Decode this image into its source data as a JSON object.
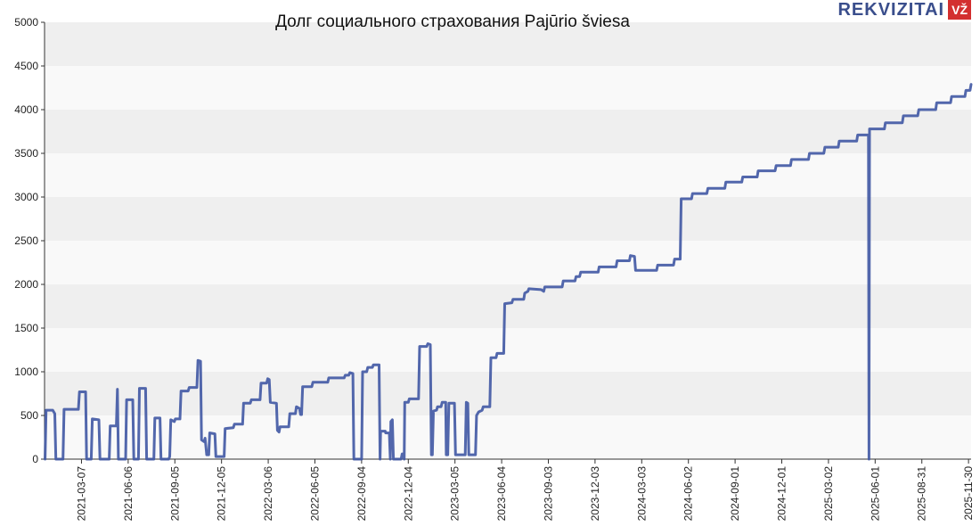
{
  "chart_data": {
    "type": "line",
    "title": "Долг социального страхования Pajūrio šviesa",
    "xlabel": "",
    "ylabel": "",
    "ylim": [
      0,
      5000
    ],
    "y_ticks": [
      0,
      500,
      1000,
      1500,
      2000,
      2500,
      3000,
      3500,
      4000,
      4500,
      5000
    ],
    "x_range": [
      "2020-12-25",
      "2025-12-05"
    ],
    "x_ticks": [
      "2021-03-07",
      "2021-06-06",
      "2021-09-05",
      "2021-12-05",
      "2022-03-06",
      "2022-06-05",
      "2022-09-04",
      "2022-12-04",
      "2023-03-05",
      "2023-06-04",
      "2023-09-03",
      "2023-12-03",
      "2024-03-03",
      "2024-06-02",
      "2024-09-01",
      "2024-12-01",
      "2025-03-02",
      "2025-06-01",
      "2025-08-31",
      "2025-11-30"
    ],
    "grid": "horizontal bands",
    "legend": "none",
    "color": "#3f57a3",
    "series": [
      {
        "points": [
          [
            "2020-12-26",
            0
          ],
          [
            "2020-12-28",
            560
          ],
          [
            "2021-01-10",
            560
          ],
          [
            "2021-01-14",
            520
          ],
          [
            "2021-01-16",
            0
          ],
          [
            "2021-01-30",
            0
          ],
          [
            "2021-02-01",
            570
          ],
          [
            "2021-03-01",
            570
          ],
          [
            "2021-03-03",
            770
          ],
          [
            "2021-03-15",
            770
          ],
          [
            "2021-03-17",
            0
          ],
          [
            "2021-03-26",
            0
          ],
          [
            "2021-03-28",
            460
          ],
          [
            "2021-04-10",
            450
          ],
          [
            "2021-04-12",
            0
          ],
          [
            "2021-04-30",
            0
          ],
          [
            "2021-05-02",
            380
          ],
          [
            "2021-05-14",
            380
          ],
          [
            "2021-05-16",
            800
          ],
          [
            "2021-05-18",
            0
          ],
          [
            "2021-06-01",
            0
          ],
          [
            "2021-06-03",
            680
          ],
          [
            "2021-06-15",
            680
          ],
          [
            "2021-06-17",
            0
          ],
          [
            "2021-06-26",
            0
          ],
          [
            "2021-06-28",
            810
          ],
          [
            "2021-07-10",
            810
          ],
          [
            "2021-07-12",
            0
          ],
          [
            "2021-07-26",
            0
          ],
          [
            "2021-07-28",
            470
          ],
          [
            "2021-08-07",
            470
          ],
          [
            "2021-08-09",
            0
          ],
          [
            "2021-08-24",
            0
          ],
          [
            "2021-08-26",
            30
          ],
          [
            "2021-08-28",
            450
          ],
          [
            "2021-09-04",
            430
          ],
          [
            "2021-09-06",
            460
          ],
          [
            "2021-09-15",
            460
          ],
          [
            "2021-09-17",
            780
          ],
          [
            "2021-10-01",
            780
          ],
          [
            "2021-10-03",
            820
          ],
          [
            "2021-10-18",
            820
          ],
          [
            "2021-10-20",
            1130
          ],
          [
            "2021-10-25",
            1120
          ],
          [
            "2021-10-27",
            220
          ],
          [
            "2021-11-01",
            200
          ],
          [
            "2021-11-03",
            240
          ],
          [
            "2021-11-06",
            50
          ],
          [
            "2021-11-10",
            50
          ],
          [
            "2021-11-12",
            300
          ],
          [
            "2021-11-22",
            290
          ],
          [
            "2021-11-24",
            30
          ],
          [
            "2021-12-10",
            30
          ],
          [
            "2021-12-12",
            350
          ],
          [
            "2021-12-28",
            360
          ],
          [
            "2021-12-30",
            400
          ],
          [
            "2022-01-15",
            400
          ],
          [
            "2022-01-17",
            640
          ],
          [
            "2022-01-30",
            640
          ],
          [
            "2022-02-01",
            680
          ],
          [
            "2022-02-18",
            680
          ],
          [
            "2022-02-20",
            870
          ],
          [
            "2022-03-03",
            870
          ],
          [
            "2022-03-05",
            920
          ],
          [
            "2022-03-08",
            910
          ],
          [
            "2022-03-10",
            650
          ],
          [
            "2022-03-22",
            640
          ],
          [
            "2022-03-24",
            330
          ],
          [
            "2022-03-27",
            310
          ],
          [
            "2022-03-29",
            370
          ],
          [
            "2022-04-15",
            370
          ],
          [
            "2022-04-17",
            520
          ],
          [
            "2022-04-28",
            520
          ],
          [
            "2022-04-30",
            600
          ],
          [
            "2022-05-06",
            580
          ],
          [
            "2022-05-08",
            510
          ],
          [
            "2022-05-10",
            510
          ],
          [
            "2022-05-12",
            830
          ],
          [
            "2022-05-30",
            830
          ],
          [
            "2022-06-01",
            880
          ],
          [
            "2022-06-30",
            880
          ],
          [
            "2022-07-02",
            930
          ],
          [
            "2022-08-01",
            930
          ],
          [
            "2022-08-03",
            960
          ],
          [
            "2022-08-10",
            960
          ],
          [
            "2022-08-12",
            990
          ],
          [
            "2022-08-18",
            980
          ],
          [
            "2022-08-20",
            0
          ],
          [
            "2022-09-04",
            0
          ],
          [
            "2022-09-06",
            1000
          ],
          [
            "2022-09-14",
            1000
          ],
          [
            "2022-09-16",
            1050
          ],
          [
            "2022-09-25",
            1050
          ],
          [
            "2022-09-27",
            1080
          ],
          [
            "2022-10-08",
            1080
          ],
          [
            "2022-10-10",
            0
          ],
          [
            "2022-10-11",
            320
          ],
          [
            "2022-10-20",
            320
          ],
          [
            "2022-10-21",
            300
          ],
          [
            "2022-10-28",
            300
          ],
          [
            "2022-10-30",
            0
          ],
          [
            "2022-10-31",
            430
          ],
          [
            "2022-11-03",
            450
          ],
          [
            "2022-11-05",
            0
          ],
          [
            "2022-11-20",
            0
          ],
          [
            "2022-11-22",
            60
          ],
          [
            "2022-11-25",
            60
          ],
          [
            "2022-11-26",
            0
          ],
          [
            "2022-11-27",
            650
          ],
          [
            "2022-12-04",
            650
          ],
          [
            "2022-12-06",
            690
          ],
          [
            "2022-12-24",
            690
          ],
          [
            "2022-12-26",
            1290
          ],
          [
            "2023-01-09",
            1290
          ],
          [
            "2023-01-11",
            1320
          ],
          [
            "2023-01-16",
            1310
          ],
          [
            "2023-01-18",
            50
          ],
          [
            "2023-01-20",
            50
          ],
          [
            "2023-01-22",
            550
          ],
          [
            "2023-01-28",
            560
          ],
          [
            "2023-01-30",
            600
          ],
          [
            "2023-02-06",
            600
          ],
          [
            "2023-02-08",
            650
          ],
          [
            "2023-02-15",
            650
          ],
          [
            "2023-02-16",
            50
          ],
          [
            "2023-02-19",
            50
          ],
          [
            "2023-02-21",
            640
          ],
          [
            "2023-03-04",
            640
          ],
          [
            "2023-03-06",
            50
          ],
          [
            "2023-03-25",
            50
          ],
          [
            "2023-03-27",
            650
          ],
          [
            "2023-03-30",
            640
          ],
          [
            "2023-04-01",
            50
          ],
          [
            "2023-04-14",
            50
          ],
          [
            "2023-04-16",
            500
          ],
          [
            "2023-04-20",
            540
          ],
          [
            "2023-04-27",
            560
          ],
          [
            "2023-04-29",
            600
          ],
          [
            "2023-05-12",
            600
          ],
          [
            "2023-05-14",
            1160
          ],
          [
            "2023-05-24",
            1160
          ],
          [
            "2023-05-26",
            1210
          ],
          [
            "2023-06-08",
            1210
          ],
          [
            "2023-06-10",
            1780
          ],
          [
            "2023-06-24",
            1790
          ],
          [
            "2023-06-26",
            1830
          ],
          [
            "2023-07-17",
            1830
          ],
          [
            "2023-07-19",
            1900
          ],
          [
            "2023-07-25",
            1920
          ],
          [
            "2023-07-27",
            1950
          ],
          [
            "2023-08-20",
            1940
          ],
          [
            "2023-08-25",
            1920
          ],
          [
            "2023-08-27",
            1970
          ],
          [
            "2023-09-30",
            1970
          ],
          [
            "2023-10-02",
            2040
          ],
          [
            "2023-10-25",
            2040
          ],
          [
            "2023-10-27",
            2090
          ],
          [
            "2023-11-03",
            2090
          ],
          [
            "2023-11-05",
            2140
          ],
          [
            "2023-12-09",
            2140
          ],
          [
            "2023-12-11",
            2200
          ],
          [
            "2024-01-13",
            2200
          ],
          [
            "2024-01-15",
            2270
          ],
          [
            "2024-02-08",
            2270
          ],
          [
            "2024-02-10",
            2330
          ],
          [
            "2024-02-18",
            2320
          ],
          [
            "2024-02-20",
            2160
          ],
          [
            "2024-04-01",
            2160
          ],
          [
            "2024-04-03",
            2220
          ],
          [
            "2024-05-04",
            2220
          ],
          [
            "2024-05-06",
            2290
          ],
          [
            "2024-05-17",
            2290
          ],
          [
            "2024-05-19",
            2980
          ],
          [
            "2024-06-08",
            2980
          ],
          [
            "2024-06-10",
            3040
          ],
          [
            "2024-07-08",
            3040
          ],
          [
            "2024-07-10",
            3100
          ],
          [
            "2024-08-12",
            3100
          ],
          [
            "2024-08-14",
            3170
          ],
          [
            "2024-09-14",
            3170
          ],
          [
            "2024-09-16",
            3230
          ],
          [
            "2024-10-14",
            3230
          ],
          [
            "2024-10-16",
            3300
          ],
          [
            "2024-11-18",
            3300
          ],
          [
            "2024-11-20",
            3360
          ],
          [
            "2024-12-18",
            3360
          ],
          [
            "2024-12-20",
            3430
          ],
          [
            "2025-01-22",
            3430
          ],
          [
            "2025-01-24",
            3500
          ],
          [
            "2025-02-21",
            3500
          ],
          [
            "2025-02-23",
            3570
          ],
          [
            "2025-03-21",
            3570
          ],
          [
            "2025-03-23",
            3640
          ],
          [
            "2025-04-26",
            3640
          ],
          [
            "2025-04-28",
            3710
          ],
          [
            "2025-05-19",
            3710
          ],
          [
            "2025-05-20",
            0
          ],
          [
            "2025-05-21",
            3780
          ],
          [
            "2025-06-19",
            3780
          ],
          [
            "2025-06-21",
            3850
          ],
          [
            "2025-07-24",
            3850
          ],
          [
            "2025-07-26",
            3930
          ],
          [
            "2025-08-23",
            3930
          ],
          [
            "2025-08-25",
            4000
          ],
          [
            "2025-09-27",
            4000
          ],
          [
            "2025-09-29",
            4080
          ],
          [
            "2025-10-26",
            4080
          ],
          [
            "2025-10-28",
            4150
          ],
          [
            "2025-11-23",
            4150
          ],
          [
            "2025-11-25",
            4220
          ],
          [
            "2025-12-03",
            4220
          ],
          [
            "2025-12-05",
            4290
          ]
        ]
      }
    ]
  },
  "logo": {
    "word": "REKVIZITAI",
    "badge": "VŽ"
  }
}
